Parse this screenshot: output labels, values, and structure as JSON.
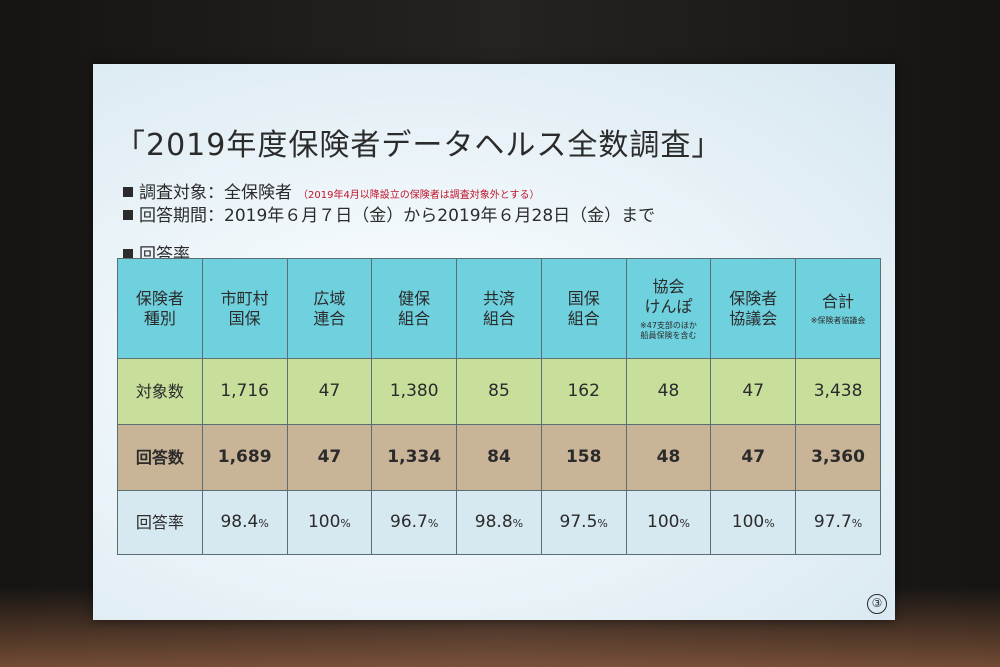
{
  "slide": {
    "title": "「2019年度保険者データヘルス全数調査」",
    "bullets": [
      {
        "text": "調査対象：全保険者",
        "note": "（2019年4月以降設立の保険者は調査対象外とする）"
      },
      {
        "text": "回答期間：2019年６月７日（金）から2019年６月28日（金）まで",
        "note": ""
      }
    ],
    "section_label": "回答率",
    "page_number": "③"
  },
  "table": {
    "headers": [
      {
        "line1": "保険者",
        "line2": "種別",
        "sub": ""
      },
      {
        "line1": "市町村",
        "line2": "国保",
        "sub": ""
      },
      {
        "line1": "広域",
        "line2": "連合",
        "sub": ""
      },
      {
        "line1": "健保",
        "line2": "組合",
        "sub": ""
      },
      {
        "line1": "共済",
        "line2": "組合",
        "sub": ""
      },
      {
        "line1": "国保",
        "line2": "組合",
        "sub": ""
      },
      {
        "line1": "協会",
        "line2": "けんぽ",
        "sub": "※47支部のほか\n船員保険を含む"
      },
      {
        "line1": "保険者",
        "line2": "協議会",
        "sub": ""
      },
      {
        "line1": "合計",
        "line2": "",
        "sub": "※保険者協議会"
      }
    ],
    "rows": [
      {
        "label": "対象数",
        "values": [
          "1,716",
          "47",
          "1,380",
          "85",
          "162",
          "48",
          "47",
          "3,438"
        ]
      },
      {
        "label": "回答数",
        "values": [
          "1,689",
          "47",
          "1,334",
          "84",
          "158",
          "48",
          "47",
          "3,360"
        ]
      }
    ],
    "rate_row": {
      "label": "回答率",
      "values": [
        {
          "num": "98.4",
          "unit": "%"
        },
        {
          "num": "100",
          "unit": "%"
        },
        {
          "num": "96.7",
          "unit": "%"
        },
        {
          "num": "98.8",
          "unit": "%"
        },
        {
          "num": "97.5",
          "unit": "%"
        },
        {
          "num": "100",
          "unit": "%"
        },
        {
          "num": "100",
          "unit": "%"
        },
        {
          "num": "97.7",
          "unit": "%"
        }
      ]
    }
  },
  "colors": {
    "header_bg": "#6fd0de",
    "targets_bg": "#c8df9c",
    "answers_bg": "#c9b497",
    "rate_bg": "#d6e8f0",
    "note_red": "#c0142a"
  }
}
